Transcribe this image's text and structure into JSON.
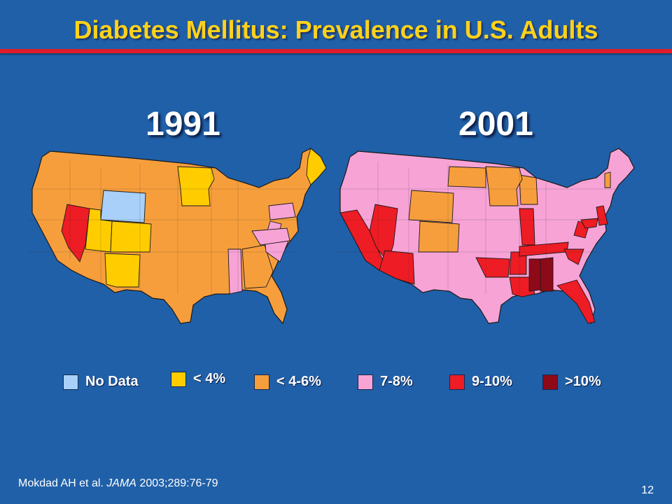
{
  "slide": {
    "title": "Diabetes Mellitus: Prevalence in U.S. Adults",
    "number": "12"
  },
  "colors": {
    "background": "#2060a8",
    "title": "#ffd21a",
    "rule": "#e01c2a",
    "no_data": "#a8d0f8",
    "lt4": "#ffcc00",
    "p4_6": "#f79e3c",
    "p7_8": "#f7a3d6",
    "p9_10": "#ee1c24",
    "gt10": "#8e0a18"
  },
  "maps": [
    {
      "year": "1991",
      "base_category": "p4_6"
    },
    {
      "year": "2001",
      "base_category": "p7_8"
    }
  ],
  "legend": [
    {
      "label": "No Data",
      "color": "#a8d0f8"
    },
    {
      "label": "< 4%",
      "color": "#ffcc00"
    },
    {
      "label": "< 4-6%",
      "color": "#f79e3c"
    },
    {
      "label": "7-8%",
      "color": "#f7a3d6"
    },
    {
      "label": "9-10%",
      "color": "#ee1c24"
    },
    {
      "label": ">10%",
      "color": "#8e0a18"
    }
  ],
  "citation": {
    "authors": "Mokdad AH et al.",
    "journal": "JAMA",
    "details": "2003;289:76-79"
  }
}
